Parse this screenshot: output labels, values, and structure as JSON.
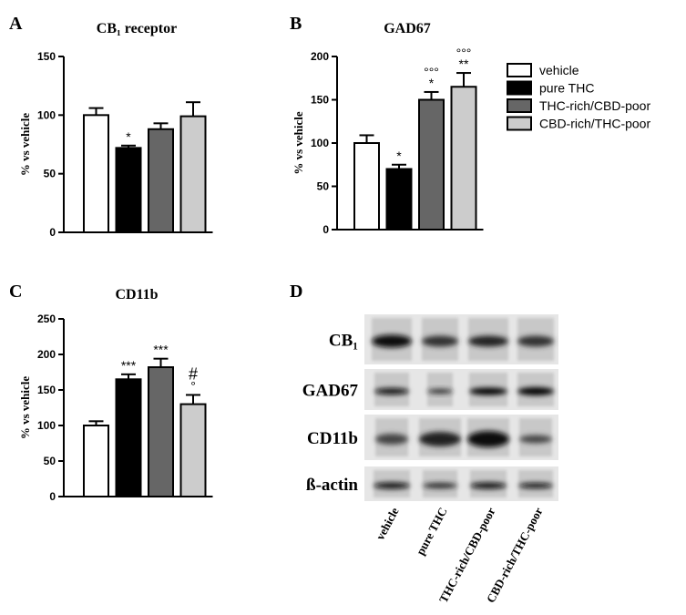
{
  "chart_data": [
    {
      "type": "bar",
      "panel": "A",
      "title": "CB₁ receptor",
      "y_label": "% vs vehicle",
      "values": [
        100,
        72,
        88,
        99
      ],
      "errors": [
        6,
        2,
        5,
        12
      ],
      "annotations": [
        [],
        [
          "*"
        ],
        [],
        []
      ],
      "ylim": [
        0,
        150
      ],
      "yticks": [
        0,
        50,
        100,
        150
      ]
    },
    {
      "type": "bar",
      "panel": "B",
      "title": "GAD67",
      "y_label": "% vs vehicle",
      "values": [
        100,
        70,
        150,
        165
      ],
      "errors": [
        9,
        5,
        9,
        16
      ],
      "annotations": [
        [],
        [
          "*"
        ],
        [
          "°°°",
          "*"
        ],
        [
          "°°°",
          "**"
        ]
      ],
      "ylim": [
        0,
        200
      ],
      "yticks": [
        0,
        50,
        100,
        150,
        200
      ]
    },
    {
      "type": "bar",
      "panel": "C",
      "title": "CD11b",
      "y_label": "% vs vehicle",
      "values": [
        100,
        165,
        182,
        130
      ],
      "errors": [
        6,
        7,
        12,
        13
      ],
      "annotations": [
        [],
        [
          "***"
        ],
        [
          "***"
        ],
        [
          "#",
          "°"
        ]
      ],
      "ylim": [
        0,
        250
      ],
      "yticks": [
        0,
        50,
        100,
        150,
        200,
        250
      ]
    }
  ],
  "legend": {
    "entries": [
      {
        "name": "vehicle",
        "color": "#ffffff"
      },
      {
        "name": "pure THC",
        "color": "#000000"
      },
      {
        "name": "THC-rich/CBD-poor",
        "color": "#666666"
      },
      {
        "name": "CBD-rich/THC-poor",
        "color": "#cccccc"
      }
    ]
  },
  "blot": {
    "panel": "D",
    "rows": [
      "CB₁",
      "GAD67",
      "CD11b",
      "ß-actin"
    ],
    "lanes": [
      "vehicle",
      "pure THC",
      "THC-rich/CBD-poor",
      "CBD-rich/THC-poor"
    ]
  }
}
